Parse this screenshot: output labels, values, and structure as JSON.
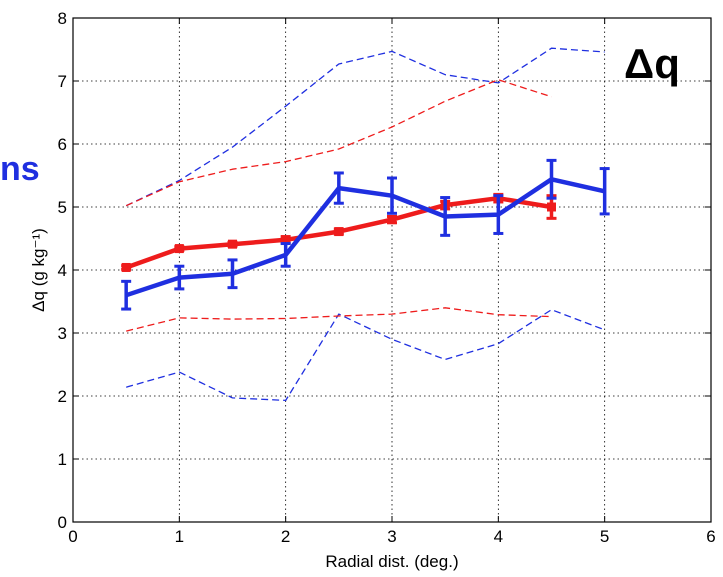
{
  "partial_text": "ns",
  "chart_data": {
    "type": "line",
    "xlabel": "Radial dist. (deg.)",
    "ylabel": "Δq (g kg⁻¹)",
    "annotation": "Δq",
    "xlim": [
      0,
      6
    ],
    "ylim": [
      0,
      8
    ],
    "xticks": [
      0,
      1,
      2,
      3,
      4,
      5,
      6
    ],
    "yticks": [
      0,
      1,
      2,
      3,
      4,
      5,
      6,
      7,
      8
    ],
    "grid": true,
    "colors": {
      "blue": "#1f2fe0",
      "red": "#ee1c1c"
    },
    "series": [
      {
        "color": "#1f2fe0",
        "style": "solid",
        "marker": "errorbar",
        "x": [
          0.5,
          1,
          1.5,
          2,
          2.5,
          3,
          3.5,
          4,
          4.5,
          5
        ],
        "y": [
          3.6,
          3.88,
          3.94,
          4.24,
          5.3,
          5.18,
          4.85,
          4.88,
          5.44,
          5.25
        ],
        "err": [
          0.22,
          0.18,
          0.22,
          0.18,
          0.24,
          0.28,
          0.3,
          0.3,
          0.3,
          0.36
        ]
      },
      {
        "color": "#ee1c1c",
        "style": "solid",
        "marker": "errorbar",
        "x": [
          0.5,
          1,
          1.5,
          2,
          2.5,
          3,
          3.5,
          4,
          4.5
        ],
        "y": [
          4.04,
          4.34,
          4.41,
          4.48,
          4.61,
          4.8,
          5.03,
          5.14,
          5.0
        ],
        "err": [
          0.03,
          0.03,
          0.03,
          0.05,
          0.04,
          0.05,
          0.06,
          0.06,
          0.18
        ]
      },
      {
        "color": "#1f2fe0",
        "style": "dashed",
        "x": [
          0.5,
          1,
          1.5,
          2,
          2.5,
          3,
          3.5,
          4,
          4.5,
          5
        ],
        "y": [
          5.02,
          5.42,
          5.95,
          6.6,
          7.27,
          7.47,
          7.1,
          6.97,
          7.52,
          7.46
        ]
      },
      {
        "color": "#1f2fe0",
        "style": "dashed",
        "x": [
          0.5,
          1,
          1.5,
          2,
          2.5,
          3,
          3.5,
          4,
          4.5,
          5
        ],
        "y": [
          2.14,
          2.38,
          1.97,
          1.93,
          3.3,
          2.9,
          2.58,
          2.83,
          3.37,
          3.05
        ]
      },
      {
        "color": "#ee1c1c",
        "style": "dashed",
        "x": [
          0.5,
          1,
          1.5,
          2,
          2.5,
          3,
          3.5,
          4,
          4.5
        ],
        "y": [
          5.02,
          5.4,
          5.6,
          5.72,
          5.92,
          6.27,
          6.68,
          7.02,
          6.75
        ]
      },
      {
        "color": "#ee1c1c",
        "style": "dashed",
        "x": [
          0.5,
          1,
          1.5,
          2,
          2.5,
          3,
          3.5,
          4,
          4.5
        ],
        "y": [
          3.03,
          3.24,
          3.22,
          3.23,
          3.27,
          3.3,
          3.4,
          3.29,
          3.26
        ]
      }
    ]
  }
}
